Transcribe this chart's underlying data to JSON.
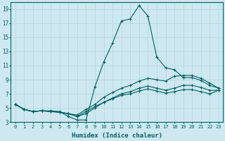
{
  "xlabel": "Humidex (Indice chaleur)",
  "bg_color": "#cde8f0",
  "grid_color": "#b8d8e0",
  "line_color": "#006060",
  "xlim": [
    -0.5,
    23.5
  ],
  "ylim": [
    3,
    20
  ],
  "xticks": [
    0,
    1,
    2,
    3,
    4,
    5,
    6,
    7,
    8,
    9,
    10,
    11,
    12,
    13,
    14,
    15,
    16,
    17,
    18,
    19,
    20,
    21,
    22,
    23
  ],
  "yticks": [
    3,
    5,
    7,
    9,
    11,
    13,
    15,
    17,
    19
  ],
  "x": [
    0,
    1,
    2,
    3,
    4,
    5,
    6,
    7,
    8,
    9,
    10,
    11,
    12,
    13,
    14,
    15,
    16,
    17,
    18,
    19,
    20,
    21,
    22,
    23
  ],
  "line1": [
    5.5,
    4.8,
    4.5,
    4.6,
    4.6,
    4.5,
    3.8,
    3.3,
    3.3,
    8.0,
    11.5,
    14.2,
    17.3,
    17.6,
    19.5,
    18.0,
    12.2,
    10.7,
    10.4,
    9.3,
    9.3,
    8.9,
    8.2,
    7.8
  ],
  "line2": [
    5.5,
    4.8,
    4.5,
    4.6,
    4.5,
    4.4,
    4.2,
    4.0,
    4.8,
    5.5,
    6.5,
    7.2,
    7.8,
    8.2,
    8.8,
    9.2,
    9.0,
    8.8,
    9.5,
    9.6,
    9.6,
    9.2,
    8.5,
    7.8
  ],
  "line3": [
    5.5,
    4.8,
    4.5,
    4.6,
    4.5,
    4.4,
    4.2,
    3.8,
    4.2,
    5.0,
    5.8,
    6.4,
    7.0,
    7.3,
    7.8,
    8.1,
    7.8,
    7.5,
    7.8,
    8.2,
    8.2,
    7.9,
    7.5,
    7.5
  ],
  "line4": [
    5.5,
    4.8,
    4.5,
    4.6,
    4.5,
    4.4,
    4.2,
    3.8,
    4.5,
    5.2,
    5.8,
    6.3,
    6.8,
    7.0,
    7.4,
    7.7,
    7.4,
    7.1,
    7.3,
    7.6,
    7.6,
    7.3,
    7.0,
    7.5
  ]
}
